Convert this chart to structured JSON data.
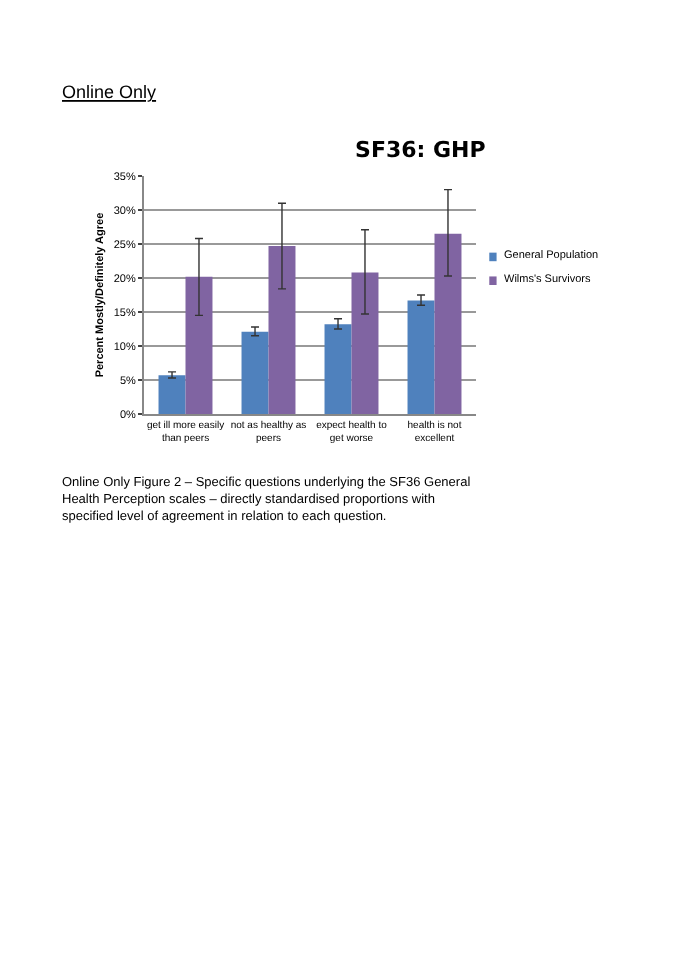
{
  "chart_data": {
    "type": "bar",
    "title": "SF36: GHP",
    "ylabel": "Percent Mostly/Definitely Agree",
    "categories": [
      "get ill more easily than peers",
      "not as healthy as peers",
      "expect health to get worse",
      "health is not excellent"
    ],
    "series": [
      {
        "name": "General Population",
        "color": "#4f81bd",
        "values": [
          5.7,
          12.1,
          13.2,
          16.7
        ],
        "errors": [
          [
            5.3,
            6.2
          ],
          [
            11.5,
            12.8
          ],
          [
            12.5,
            14.0
          ],
          [
            16.0,
            17.5
          ]
        ]
      },
      {
        "name": "Wilms's Survivors",
        "color": "#8064a2",
        "values": [
          20.2,
          24.7,
          20.8,
          26.5
        ],
        "errors": [
          [
            14.5,
            25.8
          ],
          [
            18.4,
            31.0
          ],
          [
            14.7,
            27.1
          ],
          [
            20.3,
            33.0
          ]
        ]
      }
    ],
    "ylim": [
      0,
      35
    ],
    "yticks": [
      {
        "value": 0,
        "label": "0%"
      },
      {
        "value": 5,
        "label": "5%"
      },
      {
        "value": 10,
        "label": "10%"
      },
      {
        "value": 15,
        "label": "15%"
      },
      {
        "value": 20,
        "label": "20%"
      },
      {
        "value": 25,
        "label": "25%"
      },
      {
        "value": 30,
        "label": "30%"
      },
      {
        "value": 35,
        "label": "35%"
      }
    ],
    "grid": "y",
    "legend": "right",
    "annotations": [
      "Online Only",
      "Online Only Figure 2 – Specific questions underlying the SF36 General Health Perception scales – directly standardised proportions with specified level of agreement in relation to each question."
    ]
  }
}
